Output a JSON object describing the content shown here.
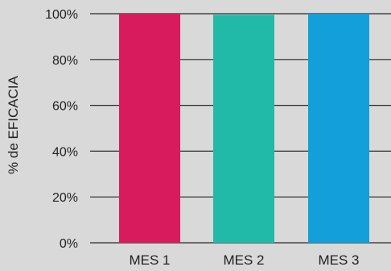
{
  "chart_data": {
    "type": "bar",
    "categories": [
      "MES 1",
      "MES 2",
      "MES 3"
    ],
    "values": [
      100,
      99.5,
      100
    ],
    "title": "",
    "xlabel": "",
    "ylabel": "% de EFICACIA",
    "ylim": [
      0,
      100
    ],
    "yticks": [
      0,
      20,
      40,
      60,
      80,
      100
    ],
    "ytick_labels": [
      "0%",
      "20%",
      "40%",
      "60%",
      "80%",
      "100%"
    ],
    "grid": "horizontal",
    "legend": "none",
    "colors": [
      "#d81b5c",
      "#21b9a7",
      "#139fd9"
    ],
    "background": "#d9d9d9"
  }
}
